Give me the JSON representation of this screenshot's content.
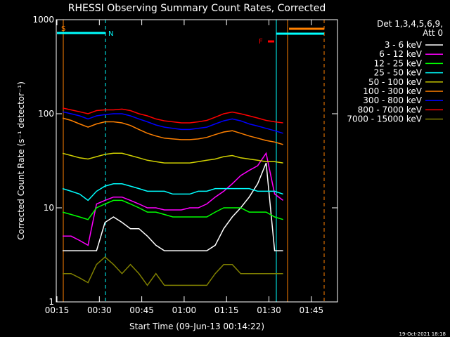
{
  "chart_data": {
    "type": "line",
    "title": "RHESSI Observing Summary Count Rates, Corrected",
    "x_label": "Start Time (09-Jun-13 00:14:22)",
    "y_label": "Corrected Count Rate (s⁻¹ detector⁻¹)",
    "legend_title": [
      "Det 1,3,4,5,6,9,",
      "Att 0"
    ],
    "annotations": [
      "S",
      "N",
      "F"
    ],
    "footer": "19-Oct-2021 18:18",
    "log_y": true,
    "grid": false,
    "legend": "outside-right",
    "xlim": [
      14.75,
      114.25
    ],
    "ylim": [
      1,
      1000
    ],
    "xticks": [
      {
        "value": 15,
        "label": "00:15"
      },
      {
        "value": 30,
        "label": "00:30"
      },
      {
        "value": 45,
        "label": "00:45"
      },
      {
        "value": 60,
        "label": "01:00"
      },
      {
        "value": 75,
        "label": "01:15"
      },
      {
        "value": 90,
        "label": "01:30"
      },
      {
        "value": 105,
        "label": "01:45"
      }
    ],
    "yticks": [
      1,
      10,
      100,
      1000
    ],
    "x": [
      17,
      20,
      23,
      26,
      29,
      32,
      35,
      38,
      41,
      44,
      47,
      50,
      53,
      56,
      59,
      62,
      65,
      68,
      71,
      74,
      77,
      80,
      83,
      86,
      89,
      92,
      95
    ],
    "series": [
      {
        "name": "3 - 6 keV",
        "color": "#ffffff",
        "values": [
          3.5,
          3.5,
          3.5,
          3.5,
          3.5,
          7,
          8,
          7,
          6,
          6,
          5,
          4,
          3.5,
          3.5,
          3.5,
          3.5,
          3.5,
          3.5,
          4,
          6,
          8,
          10,
          13,
          18,
          30,
          3.5,
          3.5
        ]
      },
      {
        "name": "6 - 12 keV",
        "color": "#ff00ff",
        "values": [
          5,
          5,
          4.5,
          4,
          11,
          12,
          13,
          13,
          12,
          11,
          10,
          10,
          9.5,
          9.5,
          9.5,
          10,
          10,
          11,
          13,
          15,
          18,
          22,
          25,
          28,
          38,
          14,
          12
        ]
      },
      {
        "name": "12 - 25 keV",
        "color": "#00ff00",
        "values": [
          9,
          8.5,
          8,
          7.5,
          10,
          11,
          12,
          12,
          11,
          10,
          9,
          9,
          8.5,
          8,
          8,
          8,
          8,
          8,
          9,
          10,
          10,
          10,
          9,
          9,
          9,
          8,
          7.5
        ]
      },
      {
        "name": "25 - 50 keV",
        "color": "#00ffff",
        "values": [
          16,
          15,
          14,
          12,
          15,
          17,
          18,
          18,
          17,
          16,
          15,
          15,
          15,
          14,
          14,
          14,
          15,
          15,
          16,
          16,
          16,
          16,
          16,
          15,
          15,
          15,
          14
        ]
      },
      {
        "name": "50 - 100 keV",
        "color": "#d0d000",
        "values": [
          38,
          36,
          34,
          33,
          35,
          37,
          38,
          38,
          36,
          34,
          32,
          31,
          30,
          30,
          30,
          30,
          31,
          32,
          33,
          35,
          36,
          34,
          33,
          32,
          31,
          31,
          30
        ]
      },
      {
        "name": "100 - 300 keV",
        "color": "#ff8000",
        "values": [
          90,
          85,
          78,
          72,
          78,
          82,
          82,
          80,
          75,
          68,
          62,
          58,
          55,
          54,
          53,
          53,
          54,
          56,
          60,
          64,
          66,
          62,
          58,
          55,
          52,
          50,
          47
        ]
      },
      {
        "name": "300 - 800 keV",
        "color": "#0000ff",
        "values": [
          105,
          100,
          95,
          88,
          95,
          98,
          100,
          100,
          95,
          88,
          82,
          76,
          72,
          70,
          68,
          68,
          70,
          72,
          78,
          84,
          88,
          84,
          78,
          74,
          70,
          66,
          62
        ]
      },
      {
        "name": "800 - 7000 keV",
        "color": "#ff0000",
        "values": [
          115,
          110,
          105,
          100,
          108,
          110,
          110,
          112,
          108,
          100,
          95,
          88,
          84,
          82,
          80,
          80,
          82,
          85,
          92,
          100,
          104,
          100,
          95,
          90,
          85,
          82,
          80
        ]
      },
      {
        "name": "7000 - 15000 keV",
        "color": "#808000",
        "values": [
          2,
          2,
          1.8,
          1.6,
          2.5,
          3,
          2.5,
          2,
          2.5,
          2,
          1.5,
          2,
          1.5,
          1.5,
          1.5,
          1.5,
          1.5,
          1.5,
          2,
          2.5,
          2.5,
          2,
          2,
          2,
          2,
          2,
          2
        ]
      }
    ]
  }
}
